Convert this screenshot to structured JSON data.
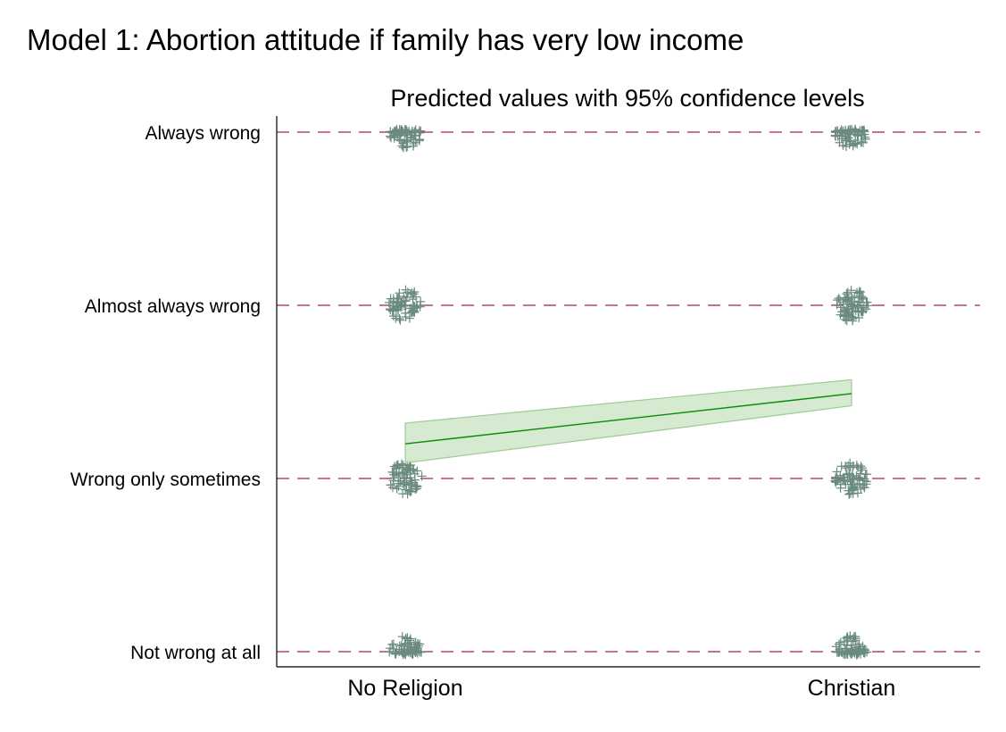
{
  "page_title": "Model 1: Abortion attitude if family has very low income",
  "chart_data": {
    "type": "line",
    "title": "Model 1: Abortion attitude if family has very low income",
    "subtitle": "Predicted values with 95% confidence levels",
    "xlabel": "",
    "ylabel": "",
    "x_categories": [
      "No Religion",
      "Christian"
    ],
    "y_categories": [
      "Not wrong at all",
      "Wrong only sometimes",
      "Almost always wrong",
      "Always wrong"
    ],
    "ylim": [
      1,
      4
    ],
    "grid": "dashed horizontal at each category",
    "series": [
      {
        "type": "line",
        "x": [
          "No Religion",
          "Christian"
        ],
        "y": [
          2.2,
          2.49
        ],
        "ci_low": [
          2.09,
          2.42
        ],
        "ci_high": [
          2.32,
          2.57
        ]
      }
    ],
    "jittered_points": [
      {
        "x": "No Religion",
        "y": 4
      },
      {
        "x": "Christian",
        "y": 4
      },
      {
        "x": "No Religion",
        "y": 3
      },
      {
        "x": "Christian",
        "y": 3
      },
      {
        "x": "No Religion",
        "y": 2
      },
      {
        "x": "Christian",
        "y": 2
      },
      {
        "x": "No Religion",
        "y": 1
      },
      {
        "x": "Christian",
        "y": 1
      }
    ],
    "colors": {
      "grid": "#a0283a",
      "line": "#0a8a0a",
      "band": "#cfe5c9",
      "band_edge": "#9ccc94",
      "points": "#6b8b7e"
    }
  }
}
